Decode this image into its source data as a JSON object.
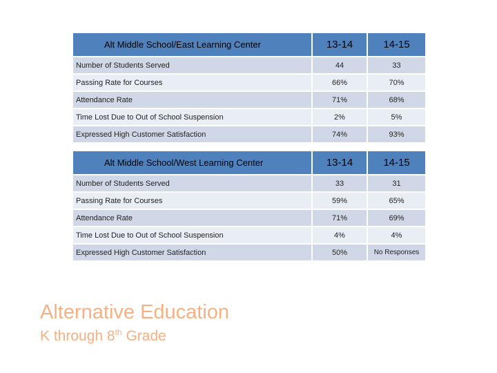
{
  "tables": [
    {
      "name": "Alt Middle School/East Learning Center",
      "years": [
        "13-14",
        "14-15"
      ],
      "rows": [
        {
          "label": "Number of Students Served",
          "a": "44",
          "b": "33"
        },
        {
          "label": "Passing Rate for Courses",
          "a": "66%",
          "b": "70%"
        },
        {
          "label": "Attendance Rate",
          "a": "71%",
          "b": "68%"
        },
        {
          "label": "Time Lost Due to Out of School Suspension",
          "a": "2%",
          "b": "5%"
        },
        {
          "label": "Expressed High Customer Satisfaction",
          "a": "74%",
          "b": "93%"
        }
      ]
    },
    {
      "name": "Alt Middle School/West Learning Center",
      "years": [
        "13-14",
        "14-15"
      ],
      "rows": [
        {
          "label": "Number of Students Served",
          "a": "33",
          "b": "31"
        },
        {
          "label": "Passing Rate for Courses",
          "a": "59%",
          "b": "65%"
        },
        {
          "label": "Attendance Rate",
          "a": "71%",
          "b": "69%"
        },
        {
          "label": "Time Lost Due to Out of School Suspension",
          "a": "4%",
          "b": "4%"
        },
        {
          "label": "Expressed High Customer Satisfaction",
          "a": "50%",
          "b": "No Responses"
        }
      ]
    }
  ],
  "footer": {
    "title": "Alternative Education",
    "subtitle_pre": "K through 8",
    "subtitle_sup": "th",
    "subtitle_post": " Grade"
  },
  "colors": {
    "header": "#4f81bd",
    "row_dark": "#d0d8e8",
    "row_light": "#e9edf4",
    "title": "#f4b183"
  }
}
